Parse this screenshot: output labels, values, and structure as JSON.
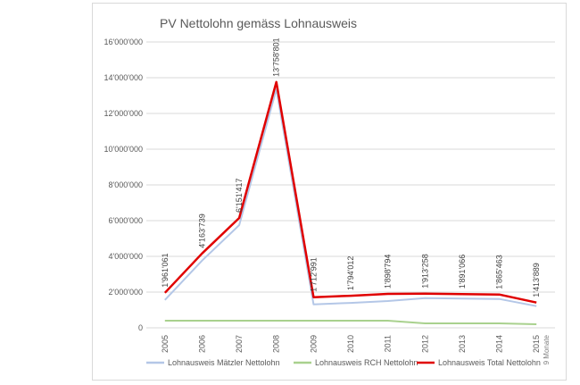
{
  "chart_data": {
    "type": "line",
    "title": "PV Nettolohn gemäss Lohnausweis",
    "xlabel": "",
    "ylabel": "",
    "ylim": [
      0,
      16000000
    ],
    "y_ticks": [
      "0",
      "2'000'000",
      "4'000'000",
      "6'000'000",
      "8'000'000",
      "10'000'000",
      "12'000'000",
      "14'000'000",
      "16'000'000"
    ],
    "categories": [
      "2005",
      "2006",
      "2007",
      "2008",
      "2009",
      "2010",
      "2011",
      "2012",
      "2013",
      "2014",
      "2015"
    ],
    "category_note": "9 Monate",
    "grid": true,
    "legend_position": "bottom",
    "series": [
      {
        "name": "Lohnausweis Mätzler Nettolohn",
        "color": "#b4c7e7",
        "values": [
          1561061,
          3763739,
          5751417,
          13358801,
          1312991,
          1394012,
          1498794,
          1663258,
          1641066,
          1615463,
          1213889
        ]
      },
      {
        "name": "Lohnausweis RCH Nettolohn",
        "color": "#a9d18e",
        "values": [
          400000,
          400000,
          400000,
          400000,
          400000,
          400000,
          400000,
          250000,
          250000,
          250000,
          200000
        ]
      },
      {
        "name": "Lohnausweis Total Nettolohn",
        "color": "#e00000",
        "values": [
          1961061,
          4163739,
          6151417,
          13758801,
          1712991,
          1794012,
          1898794,
          1913258,
          1891066,
          1865463,
          1413889
        ],
        "data_labels": [
          "1'961'061",
          "4'163'739",
          "6'151'417",
          "13'758'801",
          "1'712'991",
          "1'794'012",
          "1'898'794",
          "1'913'258",
          "1'891'066",
          "1'865'463",
          "1'413'889"
        ]
      }
    ]
  }
}
